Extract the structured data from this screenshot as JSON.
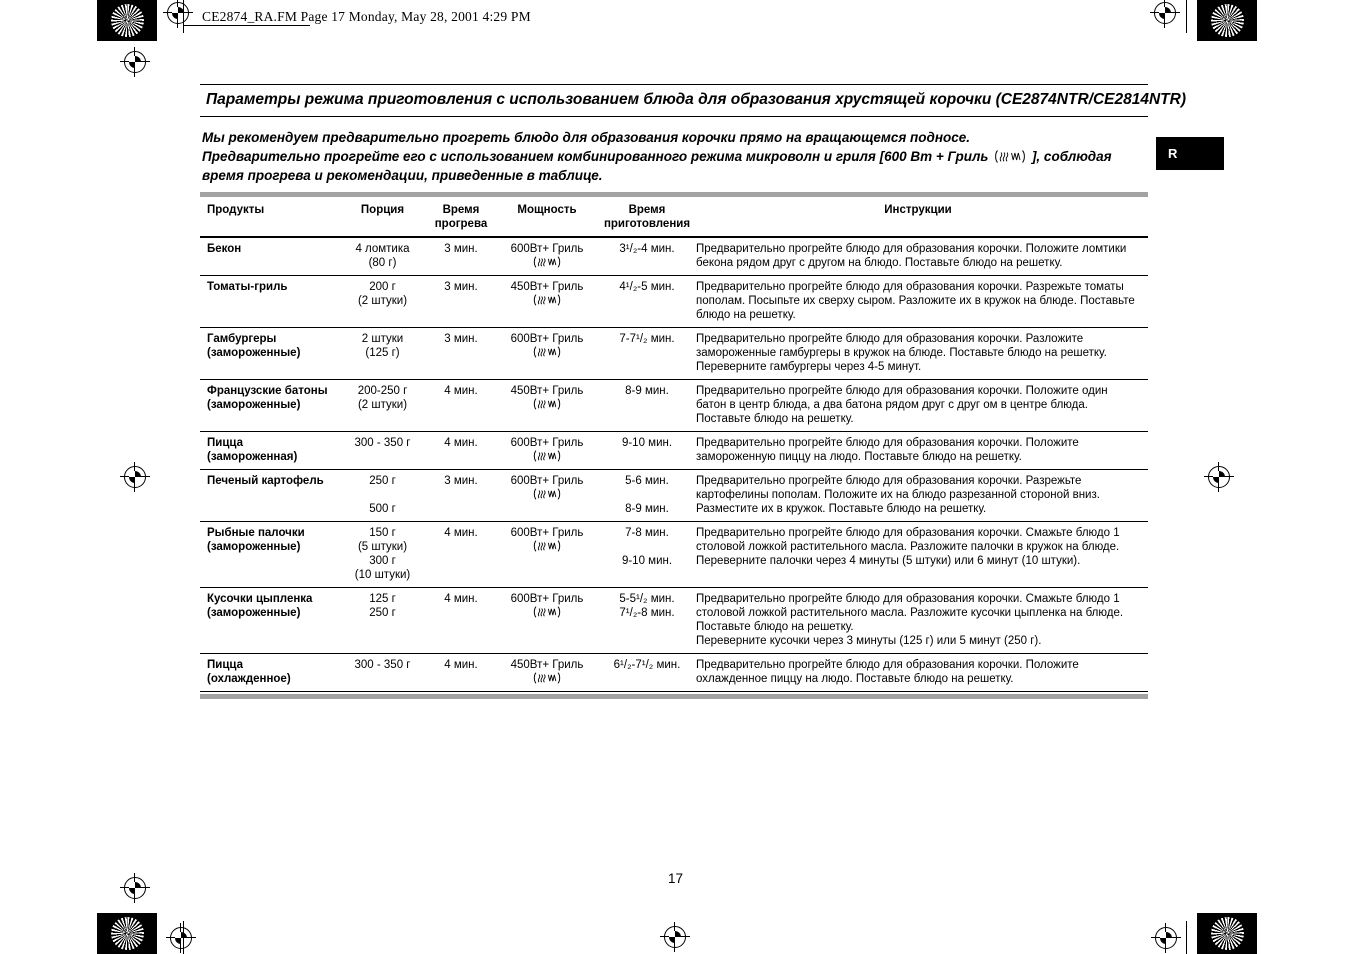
{
  "page": {
    "print_header": "CE2874_RA.FM  Page 17  Monday, May 28, 2001  4:29 PM",
    "side_tab": "R",
    "page_number": "17"
  },
  "title": "Параметры режима приготовления с использованием блюда для образования хрустящей корочки (CE2874NTR/CE2814NTR)",
  "intro": {
    "line1": "Мы рекомендуем предварительно прогреть блюдо для образования корочки прямо на вращающемся подносе.",
    "line2_before_icon": "Предварительно прогрейте его с использованием комбинированного режима микроволн и гриля [600 Вт + Гриль",
    "line2_after_icon": "], соблюдая время прогрева и рекомендации, приведенные в таблице."
  },
  "icons": {
    "power_mode": "microwave-grill-icon",
    "corner_marks": "starburst-icon",
    "registration": "registration-mark-icon"
  },
  "colors": {
    "text": "#000000",
    "rule_gray": "#a3a3a3",
    "tab_bg": "#000000",
    "tab_text": "#ffffff"
  },
  "table": {
    "headers": [
      "Продукты",
      "Порция",
      "Время прогрева",
      "Мощность",
      "Время приготовления",
      "Инструкции"
    ],
    "rows": [
      {
        "product": "Бекон",
        "note": "",
        "portion": [
          "4 ломтика",
          "(80 г)"
        ],
        "preheat": "3 мин.",
        "power": "600Вт+ Гриль",
        "cook": [
          "3¹/₂-4 мин."
        ],
        "instructions": [
          "Предварительно прогрейте блюдо для образования корочки. Положите ломтики",
          "бекона рядом друг с другом на блюдо. Поставьте блюдо на решетку."
        ]
      },
      {
        "product": "Томаты-гриль",
        "note": "",
        "portion": [
          "200 г",
          "(2 штуки)"
        ],
        "preheat": "3 мин.",
        "power": "450Вт+ Гриль",
        "cook": [
          "4¹/₂-5 мин."
        ],
        "instructions": [
          "Предварительно прогрейте блюдо для образования корочки. Разрежьте томаты",
          "пополам.  Посыпьте их сверху сыром. Разложите  их в кружок на блюде. Поставьте",
          "блюдо на решетку."
        ]
      },
      {
        "product": "Гамбургеры",
        "note": "(замороженные)",
        "portion": [
          "2 штуки",
          "(125 г)"
        ],
        "preheat": "3 мин.",
        "power": "600Вт+ Гриль",
        "cook": [
          "7-7¹/₂ мин."
        ],
        "instructions": [
          "Предварительно прогрейте блюдо для образования корочки. Разложите",
          "замороженные гамбургеры в кружок на блюде. Поставьте блюдо на  решетку.",
          "Переверните гамбургеры через 4-5 минут."
        ]
      },
      {
        "product": "Французские батоны",
        "note": "(замороженные)",
        "portion": [
          "200-250 г",
          "(2 штуки)"
        ],
        "preheat": "4 мин.",
        "power": "450Вт+ Гриль",
        "cook": [
          "8-9 мин."
        ],
        "instructions": [
          "Предварительно прогрейте блюдо для образования корочки. Положите один",
          "батон в центр блюда, а два батона рядом друг с друг ом в центре блюда.",
          "Поставьте блюдо на решетку."
        ]
      },
      {
        "product": "Пицца",
        "note": "(замороженная)",
        "portion": [
          "300 - 350 г"
        ],
        "preheat": "4 мин.",
        "power": "600Вт+ Гриль",
        "cook": [
          "9-10 мин."
        ],
        "instructions": [
          "Предварительно прогрейте блюдо для образования корочки. Положите",
          "замороженную пиццу на людо. Поставьте блюдо на решетку."
        ]
      },
      {
        "product": "Печеный картофель",
        "note": "",
        "portion": [
          "250 г",
          "",
          "500 г"
        ],
        "preheat": "3 мин.",
        "power": "600Вт+ Гриль",
        "cook": [
          "5-6 мин.",
          "",
          "8-9 мин."
        ],
        "instructions": [
          "Предварительно прогрейте блюдо для образования корочки.  Разрежьте",
          "картофелины пополам. Положите их на блюдо разрезанной стороной вниз.",
          "Разместите их в кружок. Поставьте блюдо на решетку."
        ]
      },
      {
        "product": "Рыбные палочки",
        "note": "(замороженные)",
        "portion": [
          "150 г",
          "(5 штуки)",
          "300 г",
          "(10 штуки)"
        ],
        "preheat": "4 мин.",
        "power": "600Вт+ Гриль",
        "cook": [
          "7-8 мин.",
          "",
          "9-10 мин."
        ],
        "instructions": [
          "Предварительно прогрейте блюдо для образования корочки.  Смажьте блюдо 1",
          "столовой ложкой растительного масла.  Разложите палочки в кружок на блюде.",
          "Переверните палочки через 4 минуты (5 штуки) или 6 минут (10 штуки)."
        ]
      },
      {
        "product": "Кусочки цыпленка",
        "note": "(замороженные)",
        "portion": [
          "125 г",
          "250 г"
        ],
        "preheat": "4 мин.",
        "power": "600Вт+ Гриль",
        "cook": [
          "5-5¹/₂ мин.",
          "7¹/₂-8 мин."
        ],
        "instructions": [
          "Предварительно прогрейте блюдо для образования корочки.  Смажьте блюдо 1",
          "столовой  ложкой растительного масла. Разложите кусочки цыпленка на блюде.",
          "Поставьте блюдо на решетку.",
          "Переверните кусочки через 3 минуты (125 г) или 5 минут (250 г)."
        ]
      },
      {
        "product": "Пицца",
        "note": "(охлажденное)",
        "portion": [
          "300 - 350 г"
        ],
        "preheat": "4 мин.",
        "power": "450Вт+ Гриль",
        "cook": [
          "6¹/₂-7¹/₂ мин."
        ],
        "instructions": [
          "Предварительно прогрейте блюдо для образования корочки. Положите",
          "охлажденное пиццу на людо. Поставьте блюдо на решетку."
        ]
      }
    ]
  }
}
